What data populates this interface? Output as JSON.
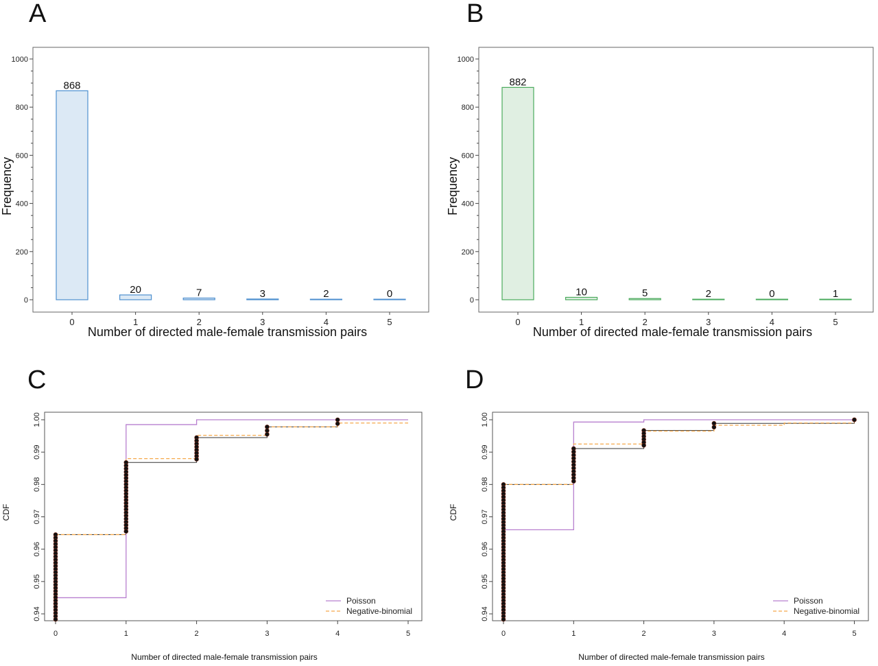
{
  "chart_data": [
    {
      "panel": "A",
      "type": "bar",
      "categories": [
        "0",
        "1",
        "2",
        "3",
        "4",
        "5"
      ],
      "values": [
        868,
        20,
        7,
        3,
        2,
        0
      ],
      "data_labels": [
        "868",
        "20",
        "7",
        "3",
        "2",
        "0"
      ],
      "xlabel": "Number of directed male-female transmission pairs",
      "ylabel": "Frequency",
      "ylim": [
        0,
        1000
      ],
      "yticks": [
        "0",
        "200",
        "400",
        "600",
        "800",
        "1000"
      ],
      "colors": {
        "fill": "#dce9f5",
        "stroke": "#4d8fcf"
      }
    },
    {
      "panel": "B",
      "type": "bar",
      "categories": [
        "0",
        "1",
        "2",
        "3",
        "4",
        "5"
      ],
      "values": [
        882,
        10,
        5,
        2,
        0,
        1
      ],
      "data_labels": [
        "882",
        "10",
        "5",
        "2",
        "0",
        "1"
      ],
      "xlabel": "Number of directed male-female transmission pairs",
      "ylabel": "Frequency",
      "ylim": [
        0,
        1000
      ],
      "yticks": [
        "0",
        "200",
        "400",
        "600",
        "800",
        "1000"
      ],
      "colors": {
        "fill": "#e0efe2",
        "stroke": "#4aaa5c"
      }
    },
    {
      "panel": "C",
      "type": "line",
      "xlabel": "Number of directed male-female transmission pairs",
      "ylabel": "CDF",
      "xlim": [
        0,
        5
      ],
      "ylim": [
        0.938,
        1.002
      ],
      "xticks": [
        "0",
        "1",
        "2",
        "3",
        "4",
        "5"
      ],
      "yticks": [
        "0.94",
        "0.95",
        "0.96",
        "0.97",
        "0.98",
        "0.99",
        "1.00"
      ],
      "legend": [
        "Poisson",
        "Negative-binomial"
      ],
      "legend_position": "bottom-right",
      "empirical": {
        "x": [
          0,
          1,
          2,
          3,
          4
        ],
        "cdf": [
          0.9645,
          0.9868,
          0.9945,
          0.9978,
          1.0
        ]
      },
      "series": [
        {
          "name": "Poisson",
          "x": [
            0,
            1,
            2,
            3,
            4,
            5
          ],
          "cdf": [
            0.945,
            0.9985,
            1.0,
            1.0,
            1.0,
            1.0
          ],
          "color": "#b77fcf",
          "dash": "solid"
        },
        {
          "name": "Negative-binomial",
          "x": [
            0,
            1,
            2,
            3,
            4,
            5
          ],
          "cdf": [
            0.9645,
            0.988,
            0.9952,
            0.9978,
            0.999,
            0.999
          ],
          "color": "#f5a84a",
          "dash": "dashed"
        }
      ],
      "point_counts_note": "",
      "point_stacks": [
        {
          "x": 0,
          "from": 0.938,
          "to": 0.9645
        },
        {
          "x": 1,
          "from": 0.9655,
          "to": 0.9868
        },
        {
          "x": 2,
          "from": 0.9878,
          "to": 0.9945
        },
        {
          "x": 3,
          "from": 0.9955,
          "to": 0.9978
        },
        {
          "x": 4,
          "from": 0.9988,
          "to": 1.0
        }
      ]
    },
    {
      "panel": "D",
      "type": "line",
      "xlabel": "Number of directed male-female transmission pairs",
      "ylabel": "CDF",
      "xlim": [
        0,
        5
      ],
      "ylim": [
        0.938,
        1.002
      ],
      "xticks": [
        "0",
        "1",
        "2",
        "3",
        "4",
        "5"
      ],
      "yticks": [
        "0.94",
        "0.95",
        "0.96",
        "0.97",
        "0.98",
        "0.99",
        "1.00"
      ],
      "legend": [
        "Poisson",
        "Negative-binomial"
      ],
      "legend_position": "bottom-right",
      "empirical": {
        "x": [
          0,
          1,
          2,
          3,
          5
        ],
        "cdf": [
          0.98,
          0.9911,
          0.9967,
          0.9989,
          1.0
        ]
      },
      "series": [
        {
          "name": "Poisson",
          "x": [
            0,
            1,
            2,
            3,
            4,
            5
          ],
          "cdf": [
            0.966,
            0.9993,
            1.0,
            1.0,
            1.0,
            1.0
          ],
          "color": "#b77fcf",
          "dash": "solid"
        },
        {
          "name": "Negative-binomial",
          "x": [
            0,
            1,
            2,
            3,
            4,
            5
          ],
          "cdf": [
            0.98,
            0.9925,
            0.9965,
            0.9983,
            0.999,
            0.999
          ],
          "color": "#f5a84a",
          "dash": "dashed"
        }
      ],
      "point_stacks": [
        {
          "x": 0,
          "from": 0.938,
          "to": 0.98
        },
        {
          "x": 1,
          "from": 0.981,
          "to": 0.9911
        },
        {
          "x": 2,
          "from": 0.9921,
          "to": 0.9967
        },
        {
          "x": 3,
          "from": 0.9977,
          "to": 0.9989
        },
        {
          "x": 5,
          "from": 1.0,
          "to": 1.0
        }
      ]
    }
  ],
  "panel_letters": [
    "A",
    "B",
    "C",
    "D"
  ]
}
